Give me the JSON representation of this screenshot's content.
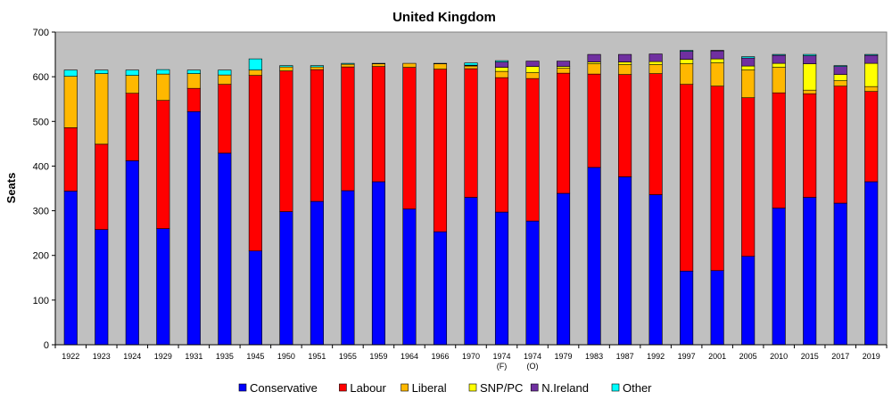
{
  "chart_data": {
    "type": "bar",
    "stacked": true,
    "title": "United Kingdom",
    "xlabel": "",
    "ylabel": "Seats",
    "ylim": [
      0,
      700
    ],
    "yticks": [
      0,
      100,
      200,
      300,
      400,
      500,
      600,
      700
    ],
    "grid": false,
    "legend_position": "bottom",
    "categories": [
      "1922",
      "1923",
      "1924",
      "1929",
      "1931",
      "1935",
      "1945",
      "1950",
      "1951",
      "1955",
      "1959",
      "1964",
      "1966",
      "1970",
      "1974\n(F)",
      "1974\n(O)",
      "1979",
      "1983",
      "1987",
      "1992",
      "1997",
      "2001",
      "2005",
      "2010",
      "2015",
      "2017",
      "2019"
    ],
    "series": [
      {
        "name": "Conservative",
        "color": "#0000ff",
        "values": [
          344,
          258,
          412,
          260,
          522,
          429,
          210,
          298,
          321,
          345,
          365,
          304,
          253,
          330,
          297,
          277,
          339,
          397,
          376,
          336,
          165,
          166,
          198,
          306,
          330,
          317,
          365
        ]
      },
      {
        "name": "Labour",
        "color": "#ff0000",
        "values": [
          142,
          191,
          151,
          287,
          52,
          154,
          393,
          315,
          295,
          277,
          258,
          317,
          364,
          288,
          301,
          319,
          269,
          209,
          229,
          271,
          418,
          413,
          355,
          258,
          232,
          262,
          202
        ]
      },
      {
        "name": "Liberal",
        "color": "#ffb800",
        "values": [
          115,
          158,
          40,
          59,
          33,
          21,
          12,
          9,
          6,
          6,
          6,
          9,
          12,
          6,
          14,
          13,
          11,
          23,
          22,
          20,
          46,
          52,
          62,
          57,
          8,
          12,
          11
        ]
      },
      {
        "name": "SNP/PC",
        "color": "#ffff00",
        "values": [
          0,
          0,
          0,
          0,
          0,
          0,
          0,
          0,
          0,
          0,
          0,
          0,
          0,
          1,
          9,
          14,
          4,
          4,
          6,
          7,
          10,
          9,
          9,
          9,
          59,
          14,
          52
        ]
      },
      {
        "name": "N.Ireland",
        "color": "#7030a0",
        "values": [
          0,
          0,
          0,
          0,
          0,
          0,
          0,
          0,
          0,
          0,
          0,
          0,
          0,
          1,
          12,
          12,
          12,
          17,
          17,
          17,
          18,
          18,
          18,
          18,
          18,
          18,
          18
        ]
      },
      {
        "name": "Other",
        "color": "#00ffff",
        "values": [
          14,
          8,
          12,
          10,
          8,
          11,
          25,
          3,
          3,
          2,
          1,
          0,
          1,
          5,
          3,
          0,
          0,
          0,
          0,
          0,
          2,
          1,
          3,
          2,
          3,
          2,
          2
        ]
      }
    ]
  }
}
